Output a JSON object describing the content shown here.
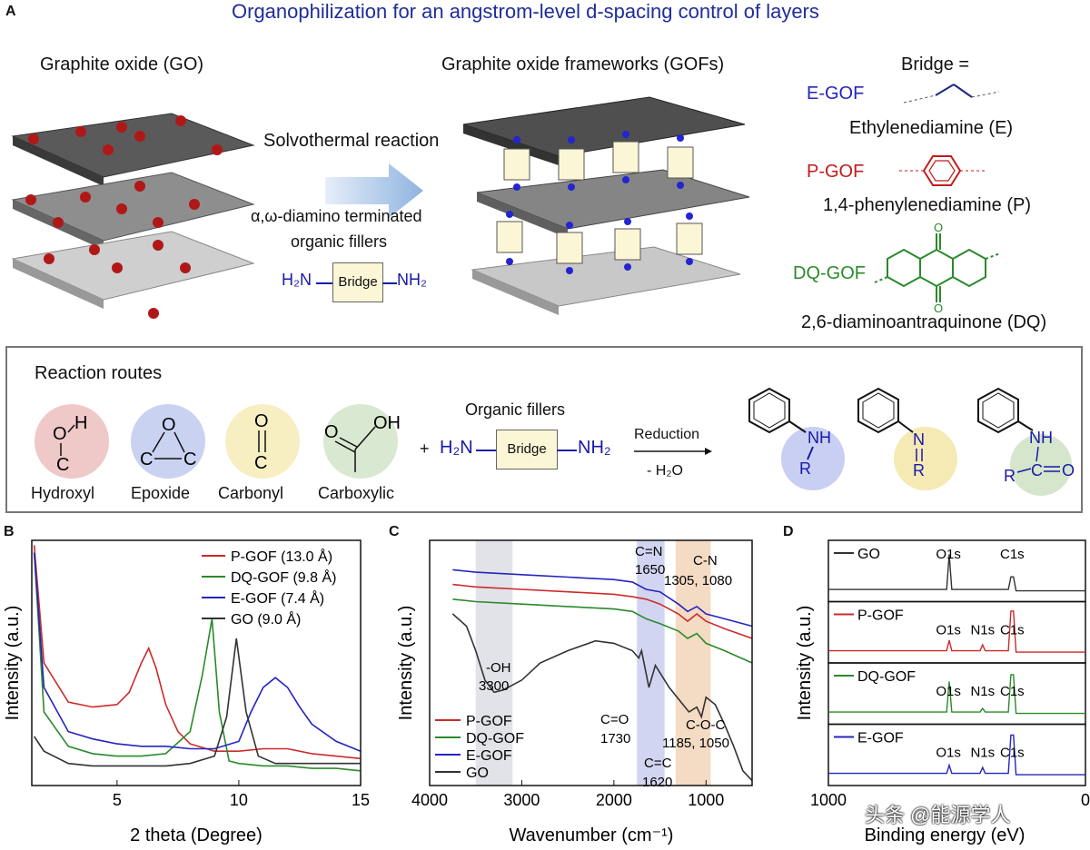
{
  "panel_a": {
    "letter": "A",
    "title": "Organophilization for an angstrom-level d-spacing control of layers",
    "go_label": "Graphite oxide (GO)",
    "gofs_label": "Graphite oxide frameworks (GOFs)",
    "arrow_top": "Solvothermal reaction",
    "arrow_bottom_1": "α,ω-diamino terminated",
    "arrow_bottom_2": "organic fillers",
    "h2n": "H₂N",
    "bridge": "Bridge",
    "nh2": "NH₂",
    "bridge_eq": "Bridge =",
    "egof": "E-GOF",
    "egof_name": "Ethylenediamine (E)",
    "pgof": "P-GOF",
    "pgof_name": "1,4-phenylenediamine (P)",
    "dqgof": "DQ-GOF",
    "dqgof_name": "2,6-diaminoantraquinone (DQ)",
    "reaction_routes": "Reaction routes",
    "hydroxyl": "Hydroxyl",
    "epoxide": "Epoxide",
    "carbonyl": "Carbonyl",
    "carboxylic": "Carboxylic",
    "plus": "+",
    "organic_fillers": "Organic fillers",
    "reduction": "Reduction",
    "minus_water": "- H₂O"
  },
  "chart_data": [
    {
      "panel": "B",
      "type": "line",
      "xlabel": "2 theta (Degree)",
      "ylabel": "Intensity (a.u.)",
      "xlim": [
        1.5,
        15
      ],
      "xticks": [
        "5",
        "10",
        "15"
      ],
      "grid": false,
      "legend_position": "top-right",
      "series": [
        {
          "name": "P-GOF (13.0 Å)",
          "color": "#cc2a2a",
          "x": [
            1.6,
            2,
            3,
            4,
            5,
            5.5,
            6,
            6.3,
            6.6,
            7,
            7.5,
            8,
            9,
            10,
            11,
            12,
            13,
            14,
            15
          ],
          "y": [
            0.98,
            0.5,
            0.34,
            0.32,
            0.33,
            0.38,
            0.5,
            0.56,
            0.48,
            0.33,
            0.22,
            0.17,
            0.14,
            0.14,
            0.15,
            0.15,
            0.13,
            0.12,
            0.11
          ]
        },
        {
          "name": "DQ-GOF (9.8 Å)",
          "color": "#2a8a2a",
          "x": [
            1.6,
            2,
            3,
            4,
            5,
            6,
            7,
            8,
            8.5,
            8.9,
            9.2,
            9.6,
            10,
            11,
            12,
            13,
            14,
            15
          ],
          "y": [
            0.95,
            0.3,
            0.16,
            0.13,
            0.12,
            0.12,
            0.13,
            0.22,
            0.45,
            0.68,
            0.3,
            0.1,
            0.09,
            0.08,
            0.08,
            0.07,
            0.07,
            0.06
          ]
        },
        {
          "name": "E-GOF (7.4 Å)",
          "color": "#2424c0",
          "x": [
            1.6,
            2,
            3,
            4,
            5,
            6,
            7,
            8,
            9,
            10,
            10.5,
            11,
            11.5,
            12,
            12.5,
            13,
            14,
            15
          ],
          "y": [
            0.95,
            0.4,
            0.22,
            0.19,
            0.17,
            0.16,
            0.16,
            0.15,
            0.15,
            0.18,
            0.3,
            0.4,
            0.44,
            0.4,
            0.32,
            0.25,
            0.18,
            0.14
          ]
        },
        {
          "name": "GO (9.0 Å)",
          "color": "#333333",
          "x": [
            1.6,
            2,
            3,
            4,
            5,
            6,
            7,
            8,
            9,
            9.5,
            9.9,
            10.3,
            10.8,
            11.5,
            12,
            13,
            14,
            15
          ],
          "y": [
            0.2,
            0.14,
            0.09,
            0.08,
            0.08,
            0.08,
            0.08,
            0.09,
            0.12,
            0.28,
            0.6,
            0.3,
            0.12,
            0.09,
            0.09,
            0.09,
            0.09,
            0.09
          ]
        }
      ]
    },
    {
      "panel": "C",
      "type": "line",
      "xlabel": "Wavenumber (cm⁻¹)",
      "ylabel": "Intensity (a.u.)",
      "xlim": [
        4000,
        500
      ],
      "xticks": [
        "4000",
        "3000",
        "2000",
        "1000"
      ],
      "grid": false,
      "legend_position": "bottom-left",
      "bands": [
        {
          "from": 3500,
          "to": 3100,
          "color": "#d9dce3"
        },
        {
          "from": 1750,
          "to": 1450,
          "color": "#c7cbee"
        },
        {
          "from": 1330,
          "to": 950,
          "color": "#f1d2b5"
        }
      ],
      "annotations": [
        "-OH",
        "3300",
        "C=O",
        "1730",
        "C=C",
        "1620",
        "C=N",
        "1650",
        "C-N",
        "1305, 1080",
        "C-O-C",
        "1185, 1050"
      ],
      "series": [
        {
          "name": "P-GOF",
          "color": "#cc2a2a",
          "x": [
            3750,
            3500,
            3000,
            2500,
            2000,
            1800,
            1650,
            1500,
            1300,
            1200,
            1100,
            1000,
            800,
            500
          ],
          "y": [
            0.82,
            0.81,
            0.8,
            0.79,
            0.78,
            0.77,
            0.76,
            0.74,
            0.7,
            0.67,
            0.7,
            0.67,
            0.64,
            0.6
          ]
        },
        {
          "name": "DQ-GOF",
          "color": "#2a8a2a",
          "x": [
            3750,
            3500,
            3000,
            2500,
            2000,
            1800,
            1650,
            1500,
            1300,
            1200,
            1100,
            1000,
            800,
            500
          ],
          "y": [
            0.76,
            0.75,
            0.74,
            0.73,
            0.72,
            0.71,
            0.68,
            0.66,
            0.63,
            0.6,
            0.62,
            0.58,
            0.55,
            0.5
          ]
        },
        {
          "name": "E-GOF",
          "color": "#2424c0",
          "x": [
            3750,
            3500,
            3000,
            2500,
            2000,
            1800,
            1650,
            1500,
            1300,
            1200,
            1100,
            1000,
            800,
            500
          ],
          "y": [
            0.88,
            0.87,
            0.86,
            0.85,
            0.84,
            0.83,
            0.8,
            0.79,
            0.74,
            0.71,
            0.73,
            0.7,
            0.68,
            0.65
          ]
        },
        {
          "name": "GO",
          "color": "#333333",
          "x": [
            3750,
            3600,
            3500,
            3400,
            3300,
            3200,
            3000,
            2800,
            2500,
            2200,
            2000,
            1800,
            1730,
            1700,
            1620,
            1550,
            1400,
            1250,
            1185,
            1100,
            1050,
            1000,
            900,
            800,
            700,
            600,
            500
          ],
          "y": [
            0.7,
            0.65,
            0.55,
            0.43,
            0.38,
            0.39,
            0.43,
            0.5,
            0.55,
            0.59,
            0.58,
            0.55,
            0.52,
            0.55,
            0.4,
            0.49,
            0.4,
            0.33,
            0.3,
            0.32,
            0.28,
            0.36,
            0.33,
            0.25,
            0.16,
            0.06,
            0.02
          ]
        }
      ]
    },
    {
      "panel": "D",
      "type": "line",
      "xlabel": "Binding energy (eV)",
      "ylabel": "Intensity (a.u.)",
      "xlim": [
        1000,
        0
      ],
      "xticks": [
        "1000",
        "0"
      ],
      "grid": false,
      "legend_position": "top-left",
      "subpanels": [
        {
          "name": "GO",
          "color": "#333333",
          "peaks": [
            {
              "x": 533,
              "y": 0.85,
              "label": "O1s"
            },
            {
              "x": 285,
              "y": 0.35,
              "label": "C1s"
            }
          ]
        },
        {
          "name": "P-GOF",
          "color": "#cc2a2a",
          "peaks": [
            {
              "x": 533,
              "y": 0.3,
              "label": "O1s"
            },
            {
              "x": 400,
              "y": 0.2,
              "label": "N1s"
            },
            {
              "x": 285,
              "y": 0.95,
              "label": "C1s"
            }
          ]
        },
        {
          "name": "DQ-GOF",
          "color": "#2a8a2a",
          "peaks": [
            {
              "x": 533,
              "y": 0.75,
              "label": "O1s"
            },
            {
              "x": 400,
              "y": 0.15,
              "label": "N1s"
            },
            {
              "x": 285,
              "y": 0.9,
              "label": "C1s"
            }
          ]
        },
        {
          "name": "E-GOF",
          "color": "#2424c0",
          "peaks": [
            {
              "x": 533,
              "y": 0.25,
              "label": "O1s"
            },
            {
              "x": 400,
              "y": 0.2,
              "label": "N1s"
            },
            {
              "x": 285,
              "y": 0.92,
              "label": "C1s"
            }
          ]
        }
      ]
    }
  ],
  "labels": {
    "b": "B",
    "c": "C",
    "d": "D"
  },
  "watermark": "头条 @能源学人"
}
